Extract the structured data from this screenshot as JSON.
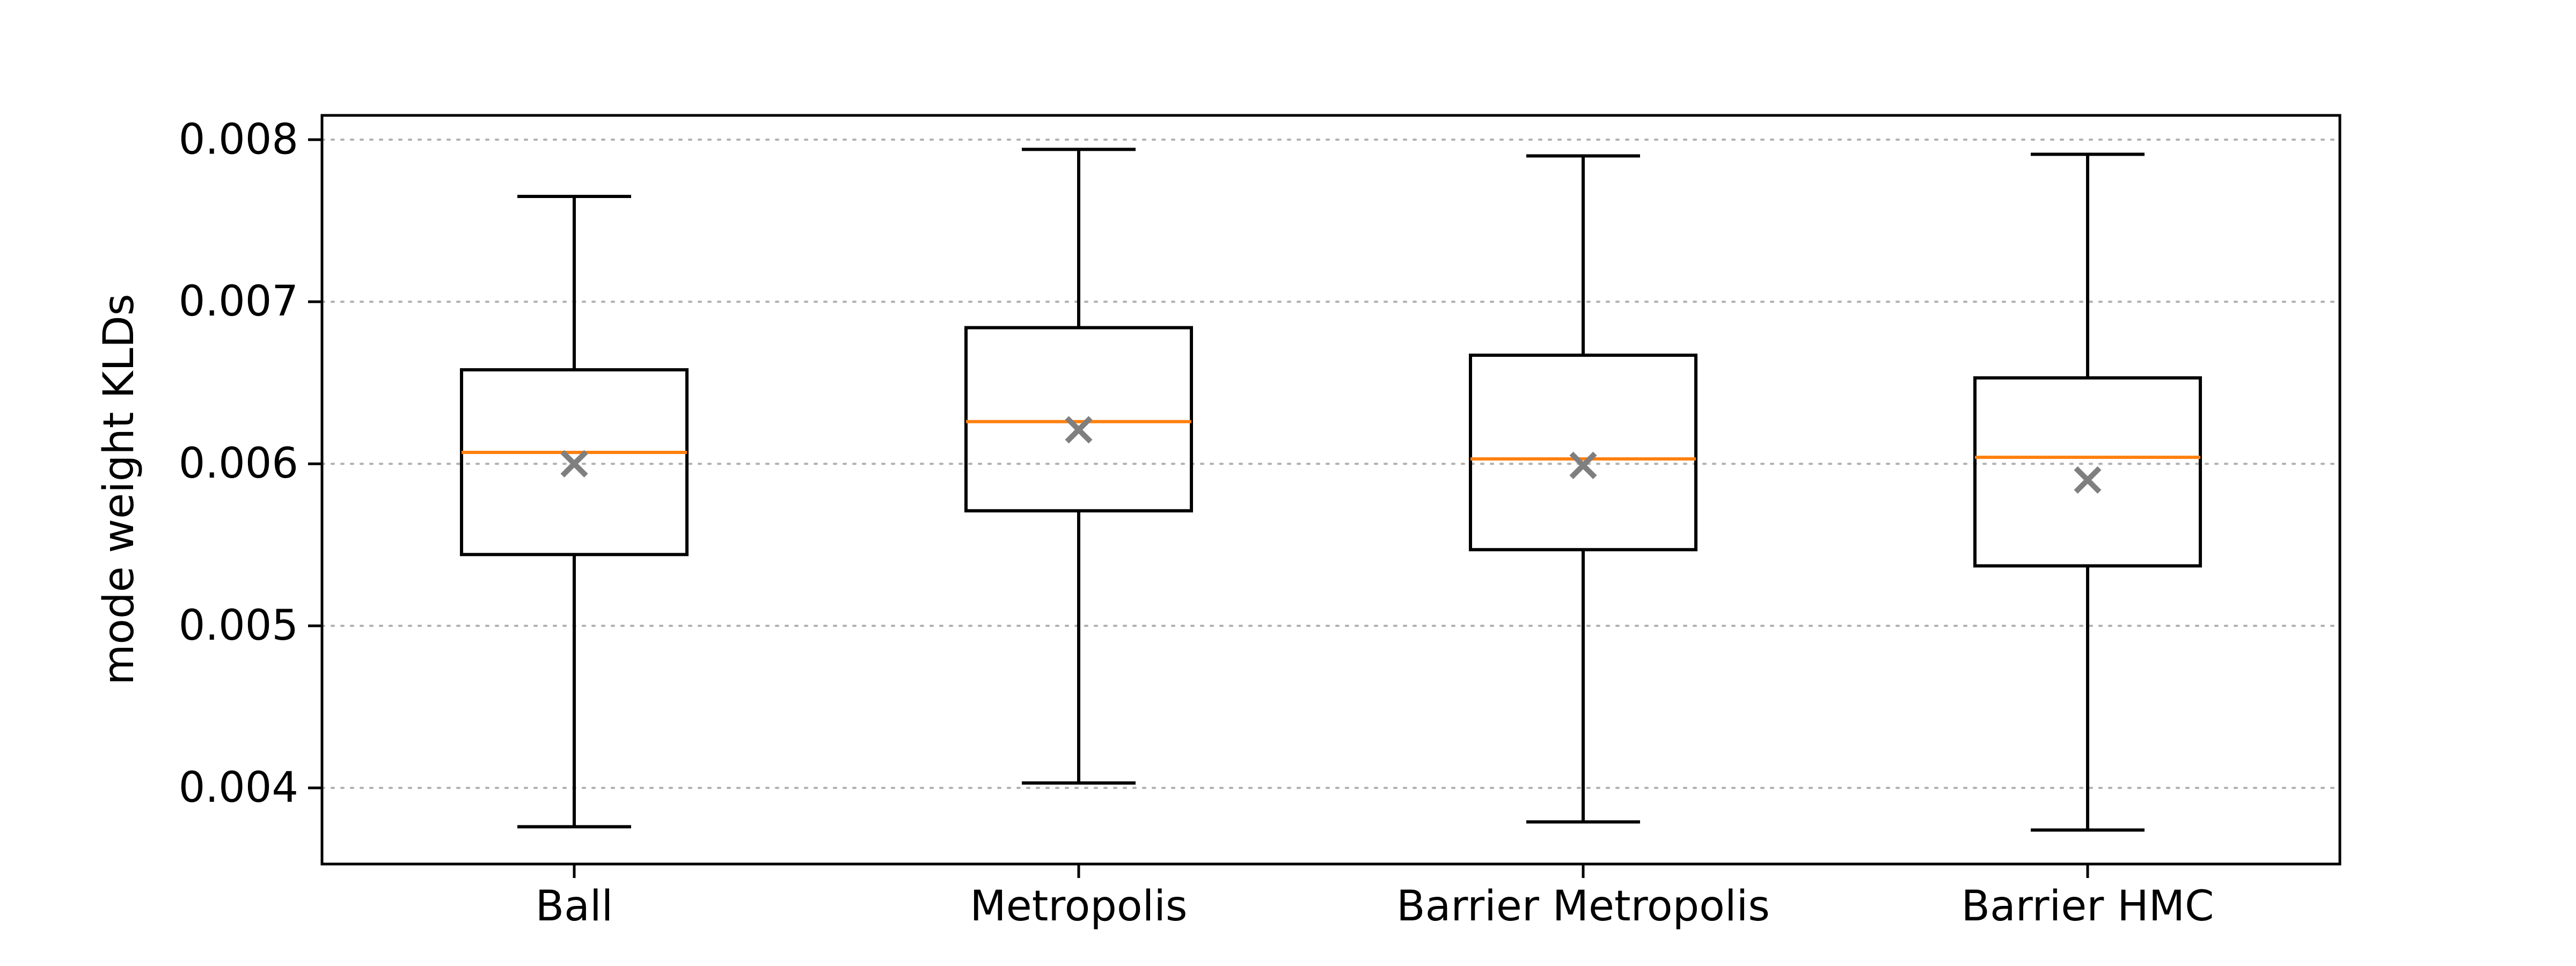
{
  "chart_data": {
    "type": "box",
    "title": "",
    "xlabel": "",
    "ylabel": "mode weight KLDs",
    "ylim": [
      0.00353,
      0.00815
    ],
    "yticks": [
      0.004,
      0.005,
      0.006,
      0.007,
      0.008
    ],
    "ytick_labels": [
      "0.004",
      "0.005",
      "0.006",
      "0.007",
      "0.008"
    ],
    "grid": "y-dotted",
    "categories": [
      "Ball",
      "Metropolis",
      "Barrier Metropolis",
      "Barrier HMC"
    ],
    "boxes": [
      {
        "label": "Ball",
        "whisker_low": 0.00376,
        "q1": 0.00544,
        "median": 0.00607,
        "q3": 0.00658,
        "whisker_high": 0.00765,
        "mean": 0.006
      },
      {
        "label": "Metropolis",
        "whisker_low": 0.00403,
        "q1": 0.00571,
        "median": 0.00626,
        "q3": 0.00684,
        "whisker_high": 0.00794,
        "mean": 0.00621
      },
      {
        "label": "Barrier Metropolis",
        "whisker_low": 0.00379,
        "q1": 0.00547,
        "median": 0.00603,
        "q3": 0.00667,
        "whisker_high": 0.0079,
        "mean": 0.00599
      },
      {
        "label": "Barrier HMC",
        "whisker_low": 0.00374,
        "q1": 0.00537,
        "median": 0.00604,
        "q3": 0.00653,
        "whisker_high": 0.00791,
        "mean": 0.0059
      }
    ],
    "colors": {
      "box": "#000000",
      "median": "#ff7f0e",
      "mean_marker": "#7f7f7f",
      "grid": "#b0b0b0"
    },
    "mean_marker": "x"
  }
}
